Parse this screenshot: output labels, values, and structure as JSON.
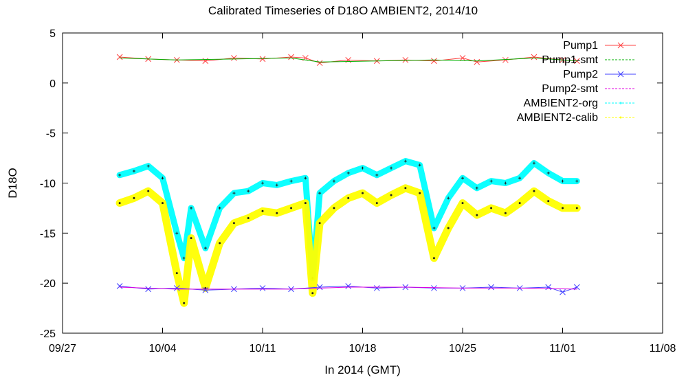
{
  "chart_data": {
    "type": "line",
    "title": "Calibrated Timeseries of D18O AMBIENT2, 2014/10",
    "xlabel": "In 2014 (GMT)",
    "ylabel": "D18O",
    "xlim": [
      "2014-09-27",
      "2014-11-08"
    ],
    "ylim": [
      -25,
      5
    ],
    "x_ticks": [
      "09/27",
      "10/04",
      "10/11",
      "10/18",
      "10/25",
      "11/01",
      "11/08"
    ],
    "y_ticks": [
      "5",
      "0",
      "-5",
      "-10",
      "-15",
      "-20",
      "-25"
    ],
    "grid": false,
    "legend_position": "top-right",
    "colors": {
      "Pump1": "#ff4040",
      "Pump1-smt": "#00b000",
      "Pump2": "#4040ff",
      "Pump2-smt": "#e000e0",
      "AMBIENT2-org": "#00ffff",
      "AMBIENT2-calib": "#ffff00"
    },
    "series": [
      {
        "name": "Pump1",
        "x": [
          "2014-10-01",
          "2014-10-03",
          "2014-10-05",
          "2014-10-07",
          "2014-10-09",
          "2014-10-11",
          "2014-10-13",
          "2014-10-14",
          "2014-10-15",
          "2014-10-17",
          "2014-10-19",
          "2014-10-21",
          "2014-10-23",
          "2014-10-25",
          "2014-10-26",
          "2014-10-28",
          "2014-10-30",
          "2014-11-01",
          "2014-11-02"
        ],
        "y": [
          2.6,
          2.4,
          2.3,
          2.2,
          2.5,
          2.4,
          2.6,
          2.5,
          2.0,
          2.3,
          2.2,
          2.3,
          2.2,
          2.5,
          2.1,
          2.3,
          2.6,
          2.3,
          2.2
        ]
      },
      {
        "name": "Pump1-smt",
        "x": [
          "2014-10-01",
          "2014-10-05",
          "2014-10-09",
          "2014-10-13",
          "2014-10-15",
          "2014-10-19",
          "2014-10-23",
          "2014-10-26",
          "2014-10-30",
          "2014-11-02"
        ],
        "y": [
          2.5,
          2.3,
          2.4,
          2.5,
          2.1,
          2.2,
          2.3,
          2.2,
          2.5,
          2.2
        ]
      },
      {
        "name": "Pump2",
        "x": [
          "2014-10-01",
          "2014-10-03",
          "2014-10-05",
          "2014-10-07",
          "2014-10-09",
          "2014-10-11",
          "2014-10-13",
          "2014-10-15",
          "2014-10-17",
          "2014-10-19",
          "2014-10-21",
          "2014-10-23",
          "2014-10-25",
          "2014-10-27",
          "2014-10-29",
          "2014-10-31",
          "2014-11-01",
          "2014-11-02"
        ],
        "y": [
          -20.3,
          -20.6,
          -20.5,
          -20.7,
          -20.6,
          -20.5,
          -20.6,
          -20.4,
          -20.3,
          -20.5,
          -20.4,
          -20.5,
          -20.5,
          -20.4,
          -20.5,
          -20.4,
          -20.9,
          -20.4
        ]
      },
      {
        "name": "Pump2-smt",
        "x": [
          "2014-10-01",
          "2014-10-05",
          "2014-10-09",
          "2014-10-13",
          "2014-10-17",
          "2014-10-21",
          "2014-10-25",
          "2014-10-29",
          "2014-11-02"
        ],
        "y": [
          -20.4,
          -20.6,
          -20.6,
          -20.6,
          -20.4,
          -20.4,
          -20.5,
          -20.5,
          -20.6
        ]
      },
      {
        "name": "AMBIENT2-org",
        "x": [
          "2014-10-01",
          "2014-10-02",
          "2014-10-03",
          "2014-10-04",
          "2014-10-05",
          "2014-10-05T12",
          "2014-10-06",
          "2014-10-07",
          "2014-10-08",
          "2014-10-09",
          "2014-10-10",
          "2014-10-11",
          "2014-10-12",
          "2014-10-13",
          "2014-10-14",
          "2014-10-14T12",
          "2014-10-15",
          "2014-10-16",
          "2014-10-17",
          "2014-10-18",
          "2014-10-19",
          "2014-10-20",
          "2014-10-21",
          "2014-10-22",
          "2014-10-23",
          "2014-10-24",
          "2014-10-25",
          "2014-10-26",
          "2014-10-27",
          "2014-10-28",
          "2014-10-29",
          "2014-10-30",
          "2014-10-31",
          "2014-11-01",
          "2014-11-02"
        ],
        "y": [
          -9.2,
          -8.8,
          -8.3,
          -9.5,
          -15,
          -17.5,
          -12.5,
          -16.5,
          -12.5,
          -11,
          -10.8,
          -10,
          -10.2,
          -9.8,
          -9.5,
          -19.5,
          -11,
          -9.8,
          -9,
          -8.5,
          -9.2,
          -8.5,
          -7.8,
          -8.2,
          -14.5,
          -11.5,
          -9.5,
          -10.5,
          -9.8,
          -10,
          -9.5,
          -8,
          -9,
          -9.8,
          -9.8
        ]
      },
      {
        "name": "AMBIENT2-calib",
        "x": [
          "2014-10-01",
          "2014-10-02",
          "2014-10-03",
          "2014-10-04",
          "2014-10-05",
          "2014-10-05T12",
          "2014-10-06",
          "2014-10-07",
          "2014-10-08",
          "2014-10-09",
          "2014-10-10",
          "2014-10-11",
          "2014-10-12",
          "2014-10-13",
          "2014-10-14",
          "2014-10-14T12",
          "2014-10-15",
          "2014-10-16",
          "2014-10-17",
          "2014-10-18",
          "2014-10-19",
          "2014-10-20",
          "2014-10-21",
          "2014-10-22",
          "2014-10-23",
          "2014-10-24",
          "2014-10-25",
          "2014-10-26",
          "2014-10-27",
          "2014-10-28",
          "2014-10-29",
          "2014-10-30",
          "2014-10-31",
          "2014-11-01",
          "2014-11-02"
        ],
        "y": [
          -12,
          -11.5,
          -10.8,
          -12,
          -19,
          -22,
          -15.5,
          -20.5,
          -16,
          -14,
          -13.5,
          -12.8,
          -13,
          -12.5,
          -12,
          -21,
          -14,
          -12.5,
          -11.5,
          -11,
          -12,
          -11.2,
          -10.5,
          -11,
          -17.5,
          -14.5,
          -12,
          -13.2,
          -12.5,
          -13,
          -12,
          -10.8,
          -11.8,
          -12.5,
          -12.5
        ]
      }
    ]
  }
}
